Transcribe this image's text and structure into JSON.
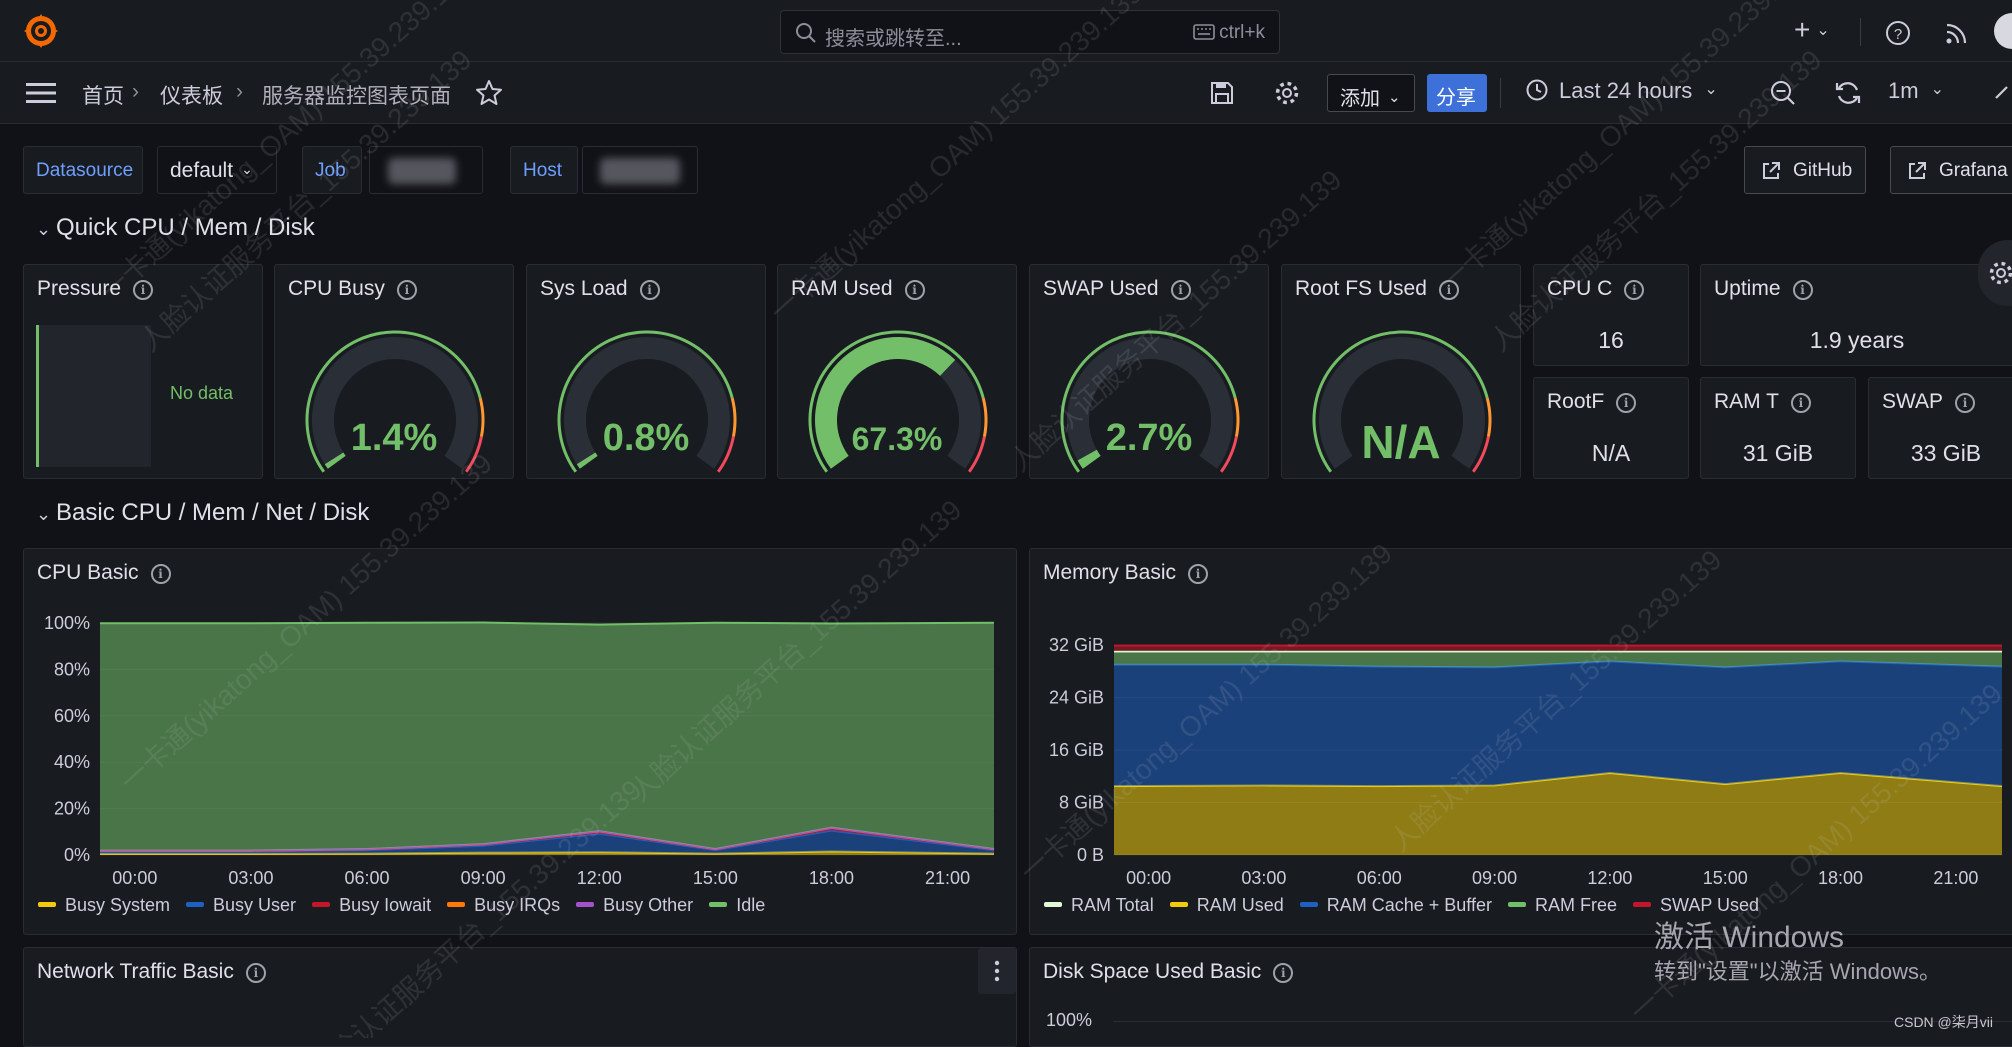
{
  "topbar": {
    "search_placeholder": "搜索或跳转至...",
    "search_shortcut": "ctrl+k",
    "plus_label": "+"
  },
  "breadcrumb": {
    "items": [
      "首页",
      "仪表板",
      "服务器监控图表页面"
    ],
    "separator": "›"
  },
  "toolbar": {
    "add_label": "添加",
    "share_label": "分享",
    "time_range": "Last 24 hours",
    "refresh_interval": "1m"
  },
  "variables": {
    "datasource_label": "Datasource",
    "datasource_value": "default",
    "job_label": "Job",
    "host_label": "Host"
  },
  "links": {
    "github": "GitHub",
    "grafana": "Grafana"
  },
  "rows": {
    "quick": "Quick CPU / Mem / Disk",
    "basic": "Basic CPU / Mem / Net / Disk"
  },
  "panels": {
    "pressure": {
      "title": "Pressure",
      "no_data": "No data"
    },
    "cpu_busy": {
      "title": "CPU Busy",
      "value_text": "1.4%",
      "percent": 1.4
    },
    "sys_load": {
      "title": "Sys Load",
      "value_text": "0.8%",
      "percent": 0.8
    },
    "ram_used": {
      "title": "RAM Used",
      "value_text": "67.3%",
      "percent": 67.3
    },
    "swap_used": {
      "title": "SWAP Used",
      "value_text": "2.7%",
      "percent": 2.7
    },
    "rootfs_used": {
      "title": "Root FS Used",
      "value_text": "N/A",
      "percent": 0
    },
    "cpu_cores": {
      "title": "CPU C",
      "value": "16"
    },
    "uptime": {
      "title": "Uptime",
      "value": "1.9 years"
    },
    "rootfs_total": {
      "title": "RootF",
      "value": "N/A"
    },
    "ram_total": {
      "title": "RAM T",
      "value": "31 GiB"
    },
    "swap_total": {
      "title": "SWAP",
      "value": "33 GiB"
    },
    "network": {
      "title": "Network Traffic Basic"
    },
    "disk": {
      "title": "Disk Space Used Basic",
      "first_tick": "100%"
    }
  },
  "chart_data": [
    {
      "type": "area",
      "title": "CPU Basic",
      "x": [
        "00:00",
        "03:00",
        "06:00",
        "09:00",
        "12:00",
        "15:00",
        "18:00",
        "21:00"
      ],
      "yticks": [
        "100%",
        "80%",
        "60%",
        "40%",
        "20%",
        "0%"
      ],
      "ylim": [
        0,
        100
      ],
      "series": [
        {
          "name": "Busy System",
          "color": "#f2cc0c",
          "values": [
            0.5,
            0.5,
            0.6,
            1,
            1.2,
            0.6,
            1.5,
            0.6
          ]
        },
        {
          "name": "Busy User",
          "color": "#1f60c4",
          "values": [
            1,
            1,
            1.5,
            3,
            8,
            1.5,
            9,
            1.5
          ]
        },
        {
          "name": "Busy Iowait",
          "color": "#c4162a",
          "values": [
            0.2,
            0.2,
            0.3,
            0.5,
            0.8,
            0.3,
            1,
            0.3
          ]
        },
        {
          "name": "Busy IRQs",
          "color": "#ff780a",
          "values": [
            0.1,
            0.1,
            0.1,
            0.1,
            0.2,
            0.1,
            0.2,
            0.1
          ]
        },
        {
          "name": "Busy Other",
          "color": "#a352cc",
          "values": [
            0.1,
            0.1,
            0.1,
            0.1,
            0.1,
            0.1,
            0.1,
            0.1
          ]
        },
        {
          "name": "Idle",
          "color": "#73bf69",
          "values": [
            98,
            98,
            97.5,
            95.5,
            89,
            97.5,
            88,
            97.5
          ]
        }
      ]
    },
    {
      "type": "area",
      "title": "Memory Basic",
      "x": [
        "00:00",
        "03:00",
        "06:00",
        "09:00",
        "12:00",
        "15:00",
        "18:00",
        "21:00"
      ],
      "yticks": [
        "32 GiB",
        "24 GiB",
        "16 GiB",
        "8 GiB",
        "0 B"
      ],
      "ylim": [
        0,
        32
      ],
      "series": [
        {
          "name": "RAM Total",
          "color": "#e0f9d7",
          "values": [
            31,
            31,
            31,
            31,
            31,
            31,
            31,
            31
          ]
        },
        {
          "name": "RAM Used",
          "color": "#f2cc0c",
          "values": [
            10.5,
            10.6,
            10.5,
            10.6,
            12.5,
            10.8,
            12.5,
            10.5
          ]
        },
        {
          "name": "RAM Cache + Buffer",
          "color": "#1f60c4",
          "values": [
            18.5,
            18.4,
            18.2,
            18,
            17,
            17.8,
            17,
            18.2
          ]
        },
        {
          "name": "RAM Free",
          "color": "#73bf69",
          "values": [
            2,
            2,
            2.3,
            2.4,
            1.5,
            2.4,
            1.5,
            2.3
          ]
        },
        {
          "name": "SWAP Used",
          "color": "#c4162a",
          "values": [
            0.9,
            0.9,
            0.9,
            0.9,
            0.9,
            0.9,
            0.9,
            0.9
          ]
        }
      ]
    }
  ],
  "watermark": {
    "line1": "一卡通(yikatong_OAM) 155.39.239.139",
    "line2": "人脸认证服务平台_155.39.239.139"
  },
  "overlay": {
    "activate_title": "激活 Windows",
    "activate_sub": "转到\"设置\"以激活 Windows。",
    "csdn": "CSDN @柒月vii"
  },
  "colors": {
    "green": "#73bf69",
    "orange": "#ff9830",
    "red": "#f2495c",
    "track": "#2a2e36",
    "share_blue": "#3d71d9"
  }
}
